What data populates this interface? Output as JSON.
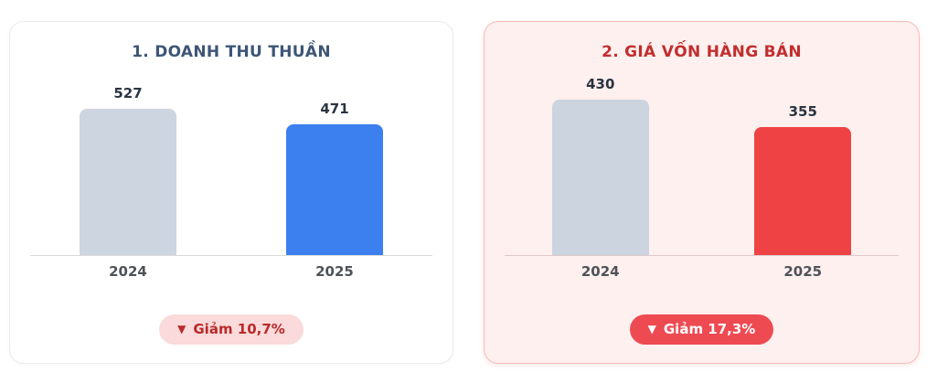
{
  "page": {
    "background_color": "#ffffff"
  },
  "chart_data": [
    {
      "type": "bar",
      "title": "1. DOANH THU THUẦN",
      "categories": [
        "2024",
        "2025"
      ],
      "values": [
        527,
        471
      ],
      "bar_colors": [
        "#ccd5e0",
        "#3c80ef"
      ],
      "value_label_color": "#2b3440",
      "axis_label_color": "#4f5358",
      "axis_line_color": "#d9d9d9",
      "ylim": [
        0,
        560
      ],
      "grid": false,
      "legend": "none",
      "annotation": "▼ Giảm 10,7%"
    },
    {
      "type": "bar",
      "title": "2. GIÁ VỐN HÀNG BÁN",
      "categories": [
        "2024",
        "2025"
      ],
      "values": [
        430,
        355
      ],
      "bar_colors": [
        "#cbd4df",
        "#ee4244"
      ],
      "value_label_color": "#2b3440",
      "axis_label_color": "#4f5358",
      "axis_line_color": "#ddc9c9",
      "ylim": [
        0,
        430
      ],
      "grid": false,
      "legend": "none",
      "annotation": "▼ Giảm 17,3%"
    }
  ],
  "cards": [
    {
      "title_color": "#3e5676",
      "background": "#ffffff",
      "border_color": "#ebebeb",
      "badge": {
        "icon": "▼",
        "label": "Giảm 10,7%",
        "background": "#fadada",
        "text_color": "#b92a2a"
      }
    },
    {
      "title_color": "#c22e2e",
      "background": "#fdf0ee",
      "border_color": "#f4bcbb",
      "badge": {
        "icon": "▼",
        "label": "Giảm 17,3%",
        "background": "#ee4a52",
        "text_color": "#ffffff"
      }
    }
  ]
}
